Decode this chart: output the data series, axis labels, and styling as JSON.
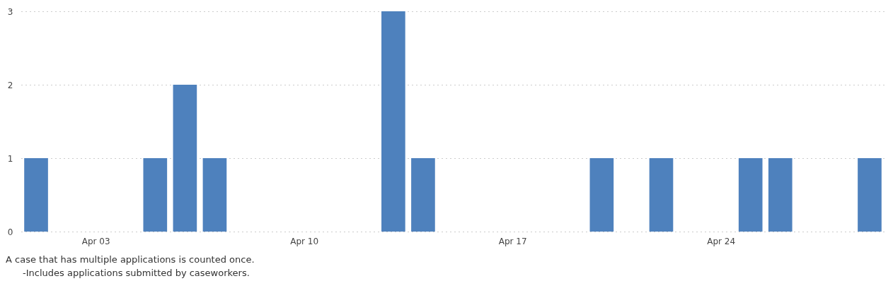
{
  "chart_data": {
    "type": "bar",
    "x": [
      "--04-01",
      "--04-05",
      "--04-06",
      "--04-07",
      "--04-13",
      "--04-14",
      "--04-20",
      "--04-22",
      "--04-25",
      "--04-26",
      "--04-29"
    ],
    "values": [
      1,
      1,
      2,
      1,
      3,
      1,
      1,
      1,
      1,
      1,
      1
    ],
    "color": "#4e81bd",
    "xlim": [
      "--03-31T12:00",
      "--04-29T12:00"
    ],
    "xticks": [
      {
        "value": "--04-03",
        "label": "Apr 03"
      },
      {
        "value": "--04-10",
        "label": "Apr 10"
      },
      {
        "value": "--04-17",
        "label": "Apr 17"
      },
      {
        "value": "--04-24",
        "label": "Apr 24"
      }
    ],
    "ylim": [
      0,
      3
    ],
    "yticks": [
      0,
      1,
      2,
      3
    ],
    "grid": "y",
    "annotations": [
      "A case that has multiple applications is counted once.",
      "-Includes applications submitted by caseworkers."
    ]
  }
}
